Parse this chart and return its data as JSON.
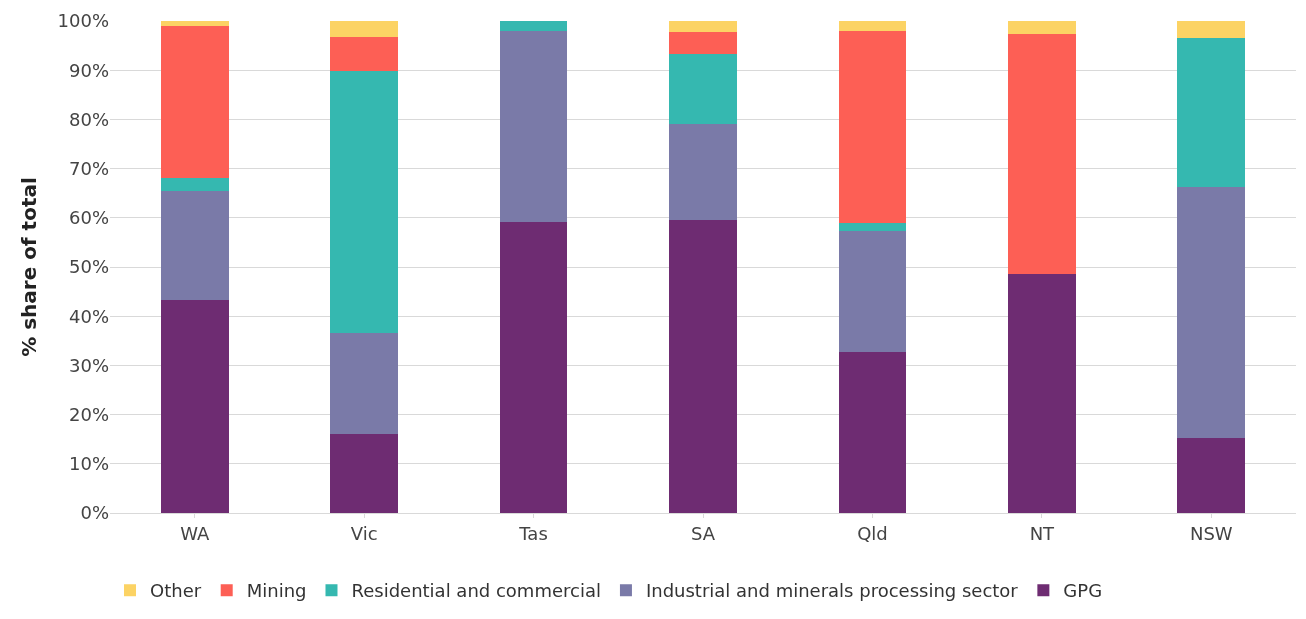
{
  "chart_data": {
    "type": "bar",
    "stacked": true,
    "ylabel": "% share of total",
    "categories": [
      "WA",
      "Vic",
      "Tas",
      "SA",
      "Qld",
      "NT",
      "NSW"
    ],
    "series": [
      {
        "name": "GPG",
        "color": "#6e2c72",
        "values": [
          43.3,
          16,
          59.2,
          59.5,
          32.7,
          48.5,
          15.2
        ]
      },
      {
        "name": "Industrial and minerals processing sector",
        "color": "#7a7aa8",
        "values": [
          22.2,
          20.5,
          38.8,
          19.5,
          24.7,
          0,
          51
        ]
      },
      {
        "name": "Residential and commercial",
        "color": "#35b8b0",
        "values": [
          2.5,
          53.3,
          2,
          14.2,
          1.6,
          0,
          30.4
        ]
      },
      {
        "name": "Mining",
        "color": "#fd5f55",
        "values": [
          31,
          6.9,
          0,
          4.6,
          39,
          48.8,
          0
        ]
      },
      {
        "name": "Other",
        "color": "#fcd364",
        "values": [
          1,
          3.3,
          0,
          2.2,
          2,
          2.7,
          3.4
        ]
      }
    ],
    "ylim": [
      0,
      100
    ],
    "yticks": [
      {
        "value": 0,
        "label": "0%"
      },
      {
        "value": 10,
        "label": "10%"
      },
      {
        "value": 20,
        "label": "20%"
      },
      {
        "value": 30,
        "label": "30%"
      },
      {
        "value": 40,
        "label": "40%"
      },
      {
        "value": 50,
        "label": "50%"
      },
      {
        "value": 60,
        "label": "60%"
      },
      {
        "value": 70,
        "label": "70%"
      },
      {
        "value": 80,
        "label": "80%"
      },
      {
        "value": 90,
        "label": "90%"
      },
      {
        "value": 100,
        "label": "100%"
      }
    ],
    "grid": "y",
    "legend": "bottom"
  }
}
